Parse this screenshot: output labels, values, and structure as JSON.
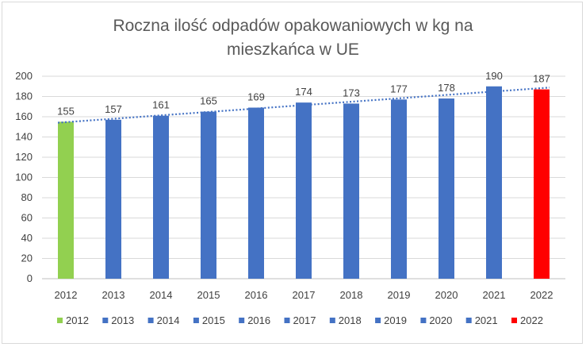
{
  "chart_data": {
    "type": "bar",
    "title_lines": [
      "Roczna ilość odpadów opakowaniowych w kg na",
      "mieszkańca w UE"
    ],
    "categories": [
      "2012",
      "2013",
      "2014",
      "2015",
      "2016",
      "2017",
      "2018",
      "2019",
      "2020",
      "2021",
      "2022"
    ],
    "values": [
      155,
      157,
      161,
      165,
      169,
      174,
      173,
      177,
      178,
      190,
      187
    ],
    "data_labels": [
      "155",
      "157",
      "161",
      "165",
      "169",
      "174",
      "173",
      "177",
      "178",
      "190",
      "187"
    ],
    "y_ticks": [
      "0",
      "20",
      "40",
      "60",
      "80",
      "100",
      "120",
      "140",
      "160",
      "180",
      "200"
    ],
    "ylim": [
      0,
      200
    ],
    "y_step": 20,
    "grid": true,
    "trendline": {
      "type": "linear",
      "style": "dotted",
      "color": "#4472c4"
    },
    "legend": {
      "position": "bottom",
      "entries": [
        "2012",
        "2013",
        "2014",
        "2015",
        "2016",
        "2017",
        "2018",
        "2019",
        "2020",
        "2021",
        "2022"
      ]
    },
    "colors": [
      "#92d050",
      "#4472c4",
      "#4472c4",
      "#4472c4",
      "#4472c4",
      "#4472c4",
      "#4472c4",
      "#4472c4",
      "#4472c4",
      "#4472c4",
      "#ff0000"
    ],
    "gridline_color": "#d9d9d9",
    "axis_color": "#bfbfbf"
  }
}
